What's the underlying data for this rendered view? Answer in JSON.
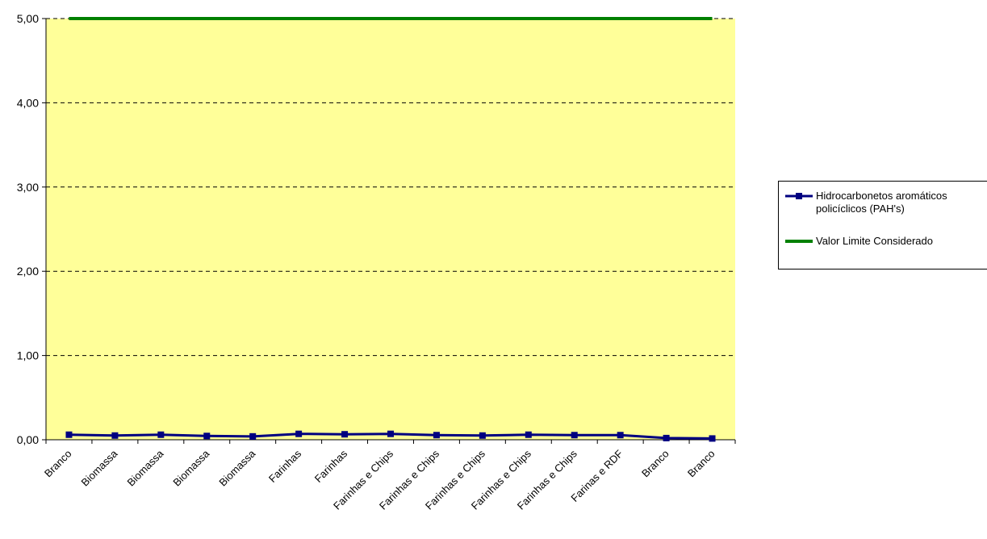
{
  "chart_data": {
    "type": "line",
    "categories": [
      "Branco",
      "Biomassa",
      "Biomassa",
      "Biomassa",
      "Biomassa",
      "Farinhas",
      "Farinhas",
      "Farinhas e Chips",
      "Farinhas e Chips",
      "Farinhas e Chips",
      "Farinhas e Chips",
      "Farinhas e Chips",
      "Farinas e RDF",
      "Branco",
      "Branco"
    ],
    "series": [
      {
        "name": "Hidrocarbonetos aromáticos policíclicos (PAH's)",
        "values": [
          0.06,
          0.05,
          0.06,
          0.045,
          0.04,
          0.07,
          0.065,
          0.07,
          0.055,
          0.05,
          0.06,
          0.055,
          0.055,
          0.02,
          0.015
        ],
        "color": "#000080",
        "marker": "square"
      },
      {
        "name": "Valor Limite Considerado",
        "values": [
          5,
          5,
          5,
          5,
          5,
          5,
          5,
          5,
          5,
          5,
          5,
          5,
          5,
          5,
          5
        ],
        "color": "#008000",
        "marker": "none"
      }
    ],
    "yticks": [
      "0,00",
      "1,00",
      "2,00",
      "3,00",
      "4,00",
      "5,00"
    ],
    "ylim": [
      0,
      5
    ],
    "grid": "horizontal dashed",
    "plot_background": "#ffff99",
    "legend_position": "right"
  }
}
